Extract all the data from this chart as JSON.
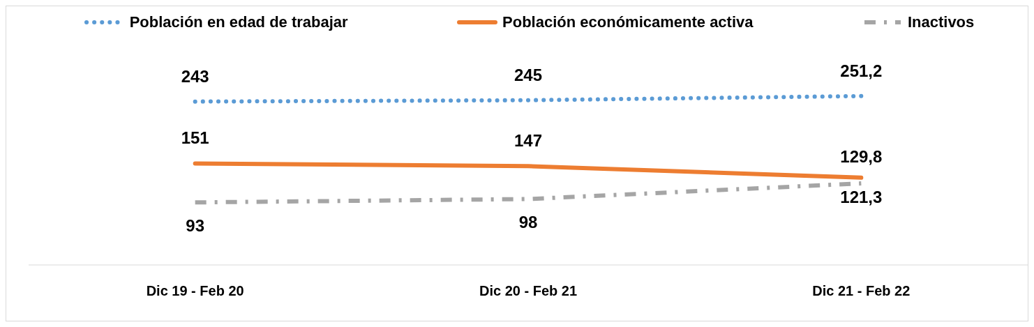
{
  "chart_data": {
    "type": "line",
    "categories": [
      "Dic 19 - Feb 20",
      "Dic 20 - Feb 21",
      "Dic 21 - Feb 22"
    ],
    "series": [
      {
        "name": "Población en edad de trabajar",
        "color": "#5b9bd5",
        "line_style": "dotted",
        "values": [
          243,
          245,
          251.2
        ],
        "value_labels": [
          "243",
          "245",
          "251,2"
        ]
      },
      {
        "name": "Población económicamente activa",
        "color": "#ed7d31",
        "line_style": "solid",
        "values": [
          151,
          147,
          129.8
        ],
        "value_labels": [
          "151",
          "147",
          "129,8"
        ]
      },
      {
        "name": "Inactivos",
        "color": "#a5a5a5",
        "line_style": "dashed",
        "values": [
          93,
          98,
          121.3
        ],
        "value_labels": [
          "93",
          "98",
          "121,3"
        ]
      }
    ],
    "legend": "top",
    "marker": "none"
  }
}
